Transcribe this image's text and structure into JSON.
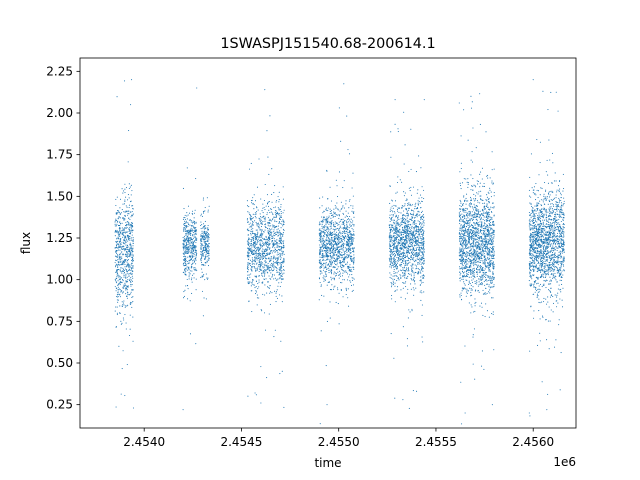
{
  "chart_data": {
    "type": "scatter",
    "title": "1SWASPJ151540.68-200614.1",
    "xlabel": "time",
    "ylabel": "flux",
    "x_offset_label": "1e6",
    "xlim": [
      2453670,
      2456220
    ],
    "ylim": [
      0.11,
      2.33
    ],
    "x_ticks": [
      2454000,
      2454500,
      2455000,
      2455500,
      2456000
    ],
    "x_tick_labels": [
      "2.4540",
      "2.4545",
      "2.4550",
      "2.4555",
      "2.4560"
    ],
    "y_ticks": [
      0.25,
      0.5,
      0.75,
      1.0,
      1.25,
      1.5,
      1.75,
      2.0,
      2.25
    ],
    "y_tick_labels": [
      "0.25",
      "0.50",
      "0.75",
      "1.00",
      "1.25",
      "1.50",
      "1.75",
      "2.00",
      "2.25"
    ],
    "grid": false,
    "legend": "none",
    "marker_color": "#1f77b4",
    "observing_seasons": [
      {
        "x_start": 2453850,
        "x_end": 2453945,
        "y_center": 1.15,
        "y_spread": 0.17,
        "points": 700
      },
      {
        "x_start": 2454200,
        "x_end": 2454270,
        "y_center": 1.2,
        "y_spread": 0.09,
        "points": 450
      },
      {
        "x_start": 2454290,
        "x_end": 2454335,
        "y_center": 1.2,
        "y_spread": 0.08,
        "points": 250
      },
      {
        "x_start": 2454530,
        "x_end": 2454720,
        "y_center": 1.2,
        "y_spread": 0.13,
        "points": 1100
      },
      {
        "x_start": 2454900,
        "x_end": 2455080,
        "y_center": 1.2,
        "y_spread": 0.11,
        "points": 1100
      },
      {
        "x_start": 2455260,
        "x_end": 2455440,
        "y_center": 1.22,
        "y_spread": 0.12,
        "points": 1300
      },
      {
        "x_start": 2455620,
        "x_end": 2455800,
        "y_center": 1.22,
        "y_spread": 0.15,
        "points": 1600
      },
      {
        "x_start": 2455980,
        "x_end": 2456160,
        "y_center": 1.22,
        "y_spread": 0.15,
        "points": 1600
      }
    ],
    "points_note_values": [
      [
        2453870,
        0.6
      ],
      [
        2453880,
        0.75
      ],
      [
        2453890,
        0.85
      ],
      [
        2453935,
        2.2
      ],
      [
        2453930,
        2.05
      ],
      [
        2453945,
        0.23
      ],
      [
        2454200,
        0.22
      ],
      [
        2454270,
        2.15
      ],
      [
        2454620,
        2.14
      ],
      [
        2454600,
        0.26
      ],
      [
        2454570,
        0.32
      ],
      [
        2455290,
        2.08
      ],
      [
        2455440,
        2.08
      ],
      [
        2455330,
        0.28
      ],
      [
        2455620,
        2.06
      ],
      [
        2455680,
        2.1
      ],
      [
        2455650,
        0.2
      ],
      [
        2455790,
        0.25
      ],
      [
        2456000,
        2.2
      ],
      [
        2456050,
        2.13
      ],
      [
        2455980,
        0.2
      ],
      [
        2456070,
        0.22
      ],
      [
        2454940,
        0.25
      ],
      [
        2455010,
        1.83
      ],
      [
        2454710,
        0.45
      ]
    ]
  }
}
